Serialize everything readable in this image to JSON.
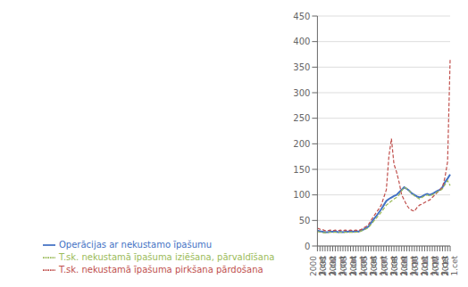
{
  "chart_data": {
    "type": "line",
    "categories": [
      "2000\n1.cet",
      null,
      "3.cet",
      null,
      "2001\n1.cet",
      null,
      "3.cet",
      null,
      "2002\n1.cet",
      null,
      "3.cet",
      null,
      "2003\n1.cet",
      null,
      "3.cet",
      null,
      "2004\n1.cet",
      null,
      "3.cet",
      null,
      "2005\n1.cet",
      null,
      "3.cet",
      null,
      "2006\n1.cet",
      null,
      "3.cet",
      null,
      "2007\n1.cet",
      null,
      "3.cet",
      null,
      "2008\n1.cet",
      null,
      "3.cet",
      null,
      "2009\n1.cet",
      null,
      "3.cet",
      null,
      "2010\n1.cet",
      null,
      "3.cet",
      null,
      "2011\n1.cet",
      null,
      "3.cet",
      null,
      "2012\n1.cet",
      null,
      "3.cet",
      null,
      "2013\n1.cet"
    ],
    "series": [
      {
        "name": "Operācijas ar nekustamo īpašumu",
        "color": "#4472c4",
        "line_style": "solid",
        "values": [
          30,
          29,
          28,
          27,
          27,
          28,
          28,
          29,
          27,
          28,
          27,
          28,
          28,
          29,
          28,
          29,
          28,
          30,
          32,
          35,
          38,
          45,
          52,
          58,
          65,
          72,
          80,
          88,
          92,
          95,
          98,
          100,
          105,
          110,
          115,
          112,
          108,
          103,
          100,
          97,
          95,
          97,
          100,
          102,
          100,
          102,
          105,
          108,
          110,
          115,
          125,
          132,
          140
        ]
      },
      {
        "name": "T.sk. nekustamā īpašuma pirkšana pārdošana",
        "color": "#c0504d",
        "line_style": "dashed",
        "values": [
          35,
          33,
          32,
          30,
          30,
          31,
          30,
          31,
          30,
          31,
          30,
          31,
          30,
          31,
          30,
          31,
          30,
          32,
          35,
          38,
          42,
          50,
          58,
          65,
          72,
          80,
          95,
          110,
          175,
          210,
          160,
          145,
          125,
          100,
          90,
          80,
          73,
          70,
          68,
          75,
          80,
          82,
          85,
          88,
          90,
          95,
          100,
          105,
          110,
          115,
          135,
          165,
          365
        ]
      },
      {
        "name": "T.sk. nekustamā īpašuma iziēšana, pārvaldīšana",
        "color": "#9bbb59",
        "line_style": "dashed",
        "values": [
          28,
          27,
          26,
          26,
          26,
          27,
          26,
          27,
          26,
          27,
          26,
          27,
          26,
          27,
          26,
          27,
          27,
          29,
          31,
          33,
          36,
          42,
          48,
          54,
          60,
          66,
          73,
          80,
          84,
          88,
          92,
          95,
          100,
          108,
          115,
          112,
          108,
          103,
          98,
          95,
          92,
          95,
          98,
          100,
          98,
          100,
          103,
          106,
          108,
          112,
          120,
          128,
          118
        ]
      }
    ],
    "ylim": [
      0,
      450
    ],
    "yticks": [
      0,
      50,
      100,
      150,
      200,
      250,
      300,
      350,
      400,
      450
    ],
    "grid": true,
    "legend": "bottom"
  }
}
